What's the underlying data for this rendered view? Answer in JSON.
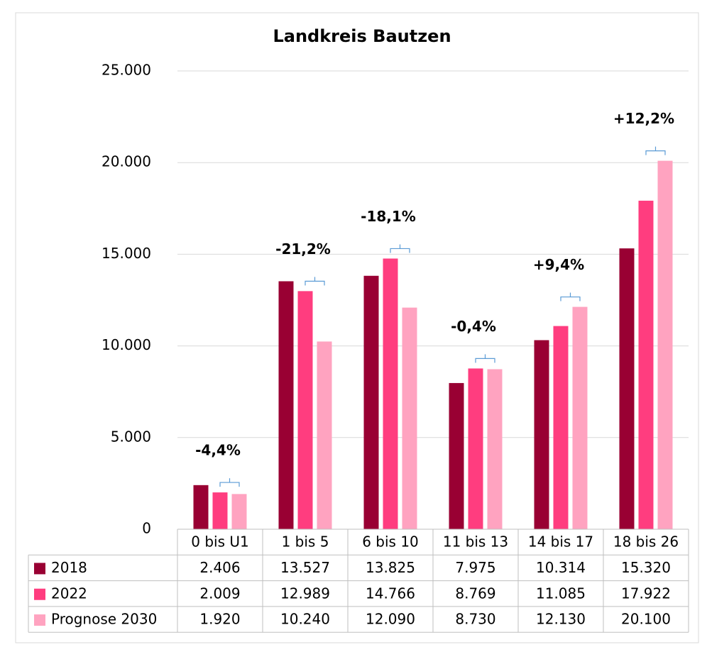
{
  "chart_data": {
    "type": "bar",
    "title": "Landkreis Bautzen",
    "categories": [
      "0 bis U1",
      "1 bis 5",
      "6 bis 10",
      "11 bis 13",
      "14 bis 17",
      "18 bis 26"
    ],
    "series": [
      {
        "name": "2018",
        "color": "#990033",
        "values": [
          2406,
          13527,
          13825,
          7975,
          10314,
          15320
        ],
        "value_labels": [
          "2.406",
          "13.527",
          "13.825",
          "7.975",
          "10.314",
          "15.320"
        ]
      },
      {
        "name": "2022",
        "color": "#ff3d7f",
        "values": [
          2009,
          12989,
          14766,
          8769,
          11085,
          17922
        ],
        "value_labels": [
          "2.009",
          "12.989",
          "14.766",
          "8.769",
          "11.085",
          "17.922"
        ]
      },
      {
        "name": "Prognose 2030",
        "color": "#ffa3c0",
        "values": [
          1920,
          10240,
          12090,
          8730,
          12130,
          20100
        ],
        "value_labels": [
          "1.920",
          "10.240",
          "12.090",
          "8.730",
          "12.130",
          "20.100"
        ]
      }
    ],
    "annotations": [
      "-4,4%",
      "-21,2%",
      "-18,1%",
      "-0,4%",
      "+9,4%",
      "+12,2%"
    ],
    "ylim": [
      0,
      25000
    ],
    "yticks": [
      0,
      {
        "value": 5000,
        "label": "5.000"
      },
      {
        "value": 10000,
        "label": "10.000"
      },
      {
        "value": 15000,
        "label": "15.000"
      },
      {
        "value": 20000,
        "label": "20.000"
      },
      {
        "value": 25000,
        "label": "25.000"
      }
    ],
    "grid": true
  }
}
